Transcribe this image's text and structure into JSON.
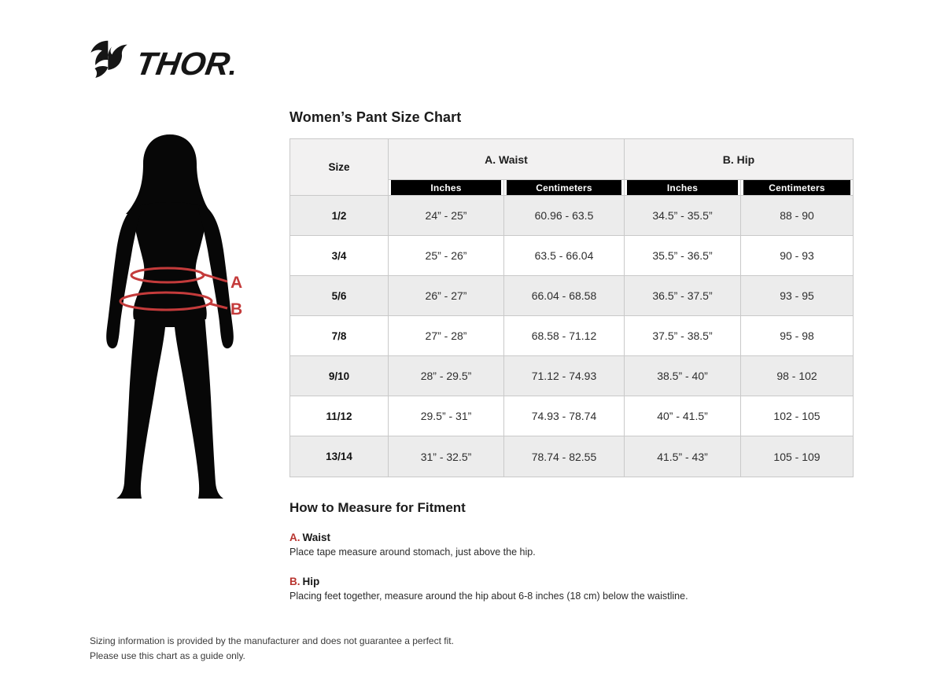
{
  "brand": {
    "name": "THOR"
  },
  "size_chart": {
    "title": "Women’s Pant Size Chart",
    "columns": {
      "size": "Size",
      "waist": "A. Waist",
      "hip": "B. Hip",
      "units": [
        "Inches",
        "Centimeters",
        "Inches",
        "Centimeters"
      ]
    },
    "rows": [
      {
        "size": "1/2",
        "waist_in": "24” - 25”",
        "waist_cm": "60.96 - 63.5",
        "hip_in": "34.5” - 35.5”",
        "hip_cm": "88 - 90"
      },
      {
        "size": "3/4",
        "waist_in": "25” - 26”",
        "waist_cm": "63.5 - 66.04",
        "hip_in": "35.5” - 36.5”",
        "hip_cm": "90 - 93"
      },
      {
        "size": "5/6",
        "waist_in": "26” - 27”",
        "waist_cm": "66.04 - 68.58",
        "hip_in": "36.5” - 37.5”",
        "hip_cm": "93 - 95"
      },
      {
        "size": "7/8",
        "waist_in": "27” - 28”",
        "waist_cm": "68.58 - 71.12",
        "hip_in": "37.5” - 38.5”",
        "hip_cm": "95 - 98"
      },
      {
        "size": "9/10",
        "waist_in": "28” - 29.5”",
        "waist_cm": "71.12 - 74.93",
        "hip_in": "38.5” - 40”",
        "hip_cm": "98 - 102"
      },
      {
        "size": "11/12",
        "waist_in": "29.5” - 31”",
        "waist_cm": "74.93 - 78.74",
        "hip_in": "40” - 41.5”",
        "hip_cm": "102 - 105"
      },
      {
        "size": "13/14",
        "waist_in": "31” - 32.5”",
        "waist_cm": "78.74 - 82.55",
        "hip_in": "41.5” - 43”",
        "hip_cm": "105 - 109"
      }
    ]
  },
  "figure": {
    "labels": {
      "waist": "A",
      "hip": "B"
    }
  },
  "measure_guide": {
    "title": "How to Measure for Fitment",
    "items": [
      {
        "key": "A.",
        "name": "Waist",
        "description": "Place tape measure around stomach, just above the hip."
      },
      {
        "key": "B.",
        "name": "Hip",
        "description": "Placing feet together, measure around the hip about 6-8 inches (18 cm) below the waistline."
      }
    ]
  },
  "footer": {
    "line1": "Sizing information is provided by the manufacturer and does not guarantee a perfect fit.",
    "line2": "Please use this chart as a guide only."
  },
  "colors": {
    "accent_red": "#c43b3b",
    "guide_red": "#b8342f",
    "bar_bg": "#000000",
    "bar_text": "#ffffff",
    "header_bg": "#f2f1f1",
    "row_alt_bg": "#ececec",
    "border": "#c9c9c9",
    "text": "#1d1d1d"
  }
}
